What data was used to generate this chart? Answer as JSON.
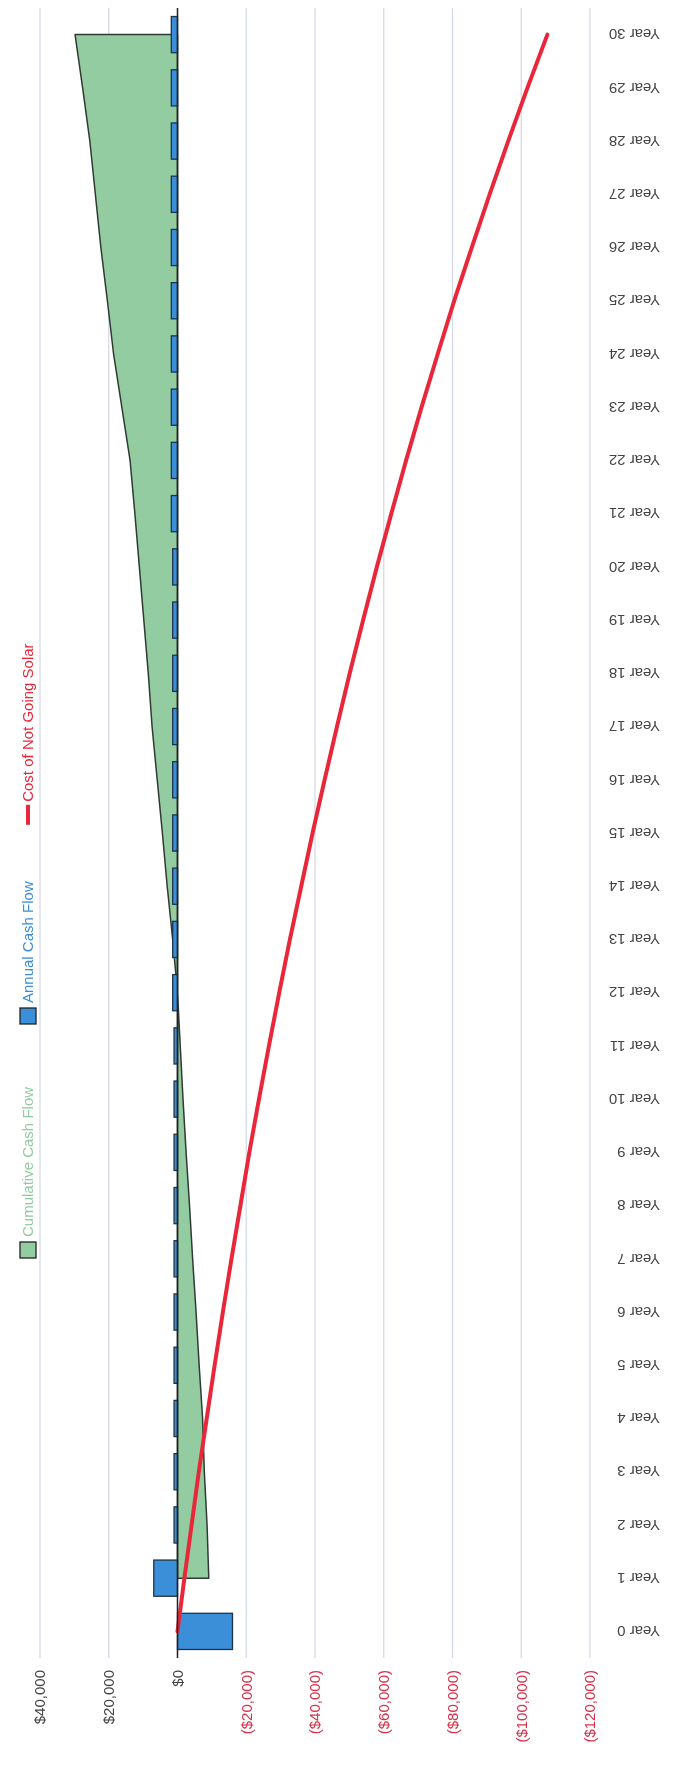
{
  "chart_data": {
    "type": "bar",
    "orientation": "horizontal",
    "categories": [
      "Year 30",
      "Year 29",
      "Year 28",
      "Year 27",
      "Year 26",
      "Year 25",
      "Year 24",
      "Year 23",
      "Year 22",
      "Year 21",
      "Year 20",
      "Year 19",
      "Year 18",
      "Year 17",
      "Year 16",
      "Year 15",
      "Year 14",
      "Year 13",
      "Year 12",
      "Year 11",
      "Year 10",
      "Year 9",
      "Year 8",
      "Year 7",
      "Year 6",
      "Year 5",
      "Year 4",
      "Year 3",
      "Year 2",
      "Year 1",
      "Year 0"
    ],
    "series": [
      {
        "name": "Cumulative Cash Flow",
        "type": "area",
        "color": "#93cca0",
        "values": [
          29800,
          27600,
          25500,
          23900,
          22300,
          20400,
          18600,
          16200,
          13800,
          12400,
          11100,
          9800,
          8500,
          7400,
          5900,
          4400,
          3000,
          1400,
          0,
          -800,
          -1600,
          -2500,
          -3500,
          -4400,
          -5400,
          -6300,
          -7300,
          -7800,
          -8600,
          -9100,
          null
        ]
      },
      {
        "name": "Annual Cash Flow",
        "color": "#3a8fd8",
        "values": [
          1800,
          1800,
          1800,
          1800,
          1800,
          1800,
          1800,
          1800,
          1800,
          1800,
          1400,
          1400,
          1400,
          1400,
          1400,
          1400,
          1400,
          1400,
          1400,
          1000,
          1000,
          1000,
          1000,
          1000,
          1000,
          1000,
          1000,
          1000,
          1000,
          6900,
          -16000
        ]
      },
      {
        "name": "Cost of Not Going Solar",
        "type": "line",
        "color": "#e8283a",
        "values": [
          -107600,
          -101800,
          -96200,
          -90800,
          -85600,
          -80500,
          -75700,
          -71000,
          -66500,
          -62200,
          -58000,
          -54000,
          -50100,
          -46400,
          -42800,
          -39300,
          -36000,
          -32700,
          -29600,
          -26600,
          -23700,
          -20900,
          -18300,
          -15700,
          -13200,
          -10800,
          -8500,
          -6200,
          -4100,
          -2000,
          0
        ]
      }
    ],
    "xlim": [
      40000,
      -120000
    ],
    "xticks": [
      {
        "value": 40000,
        "label": "$40,000"
      },
      {
        "value": 20000,
        "label": "$20,000"
      },
      {
        "value": 0,
        "label": "$0"
      },
      {
        "value": -20000,
        "label": "($20,000)"
      },
      {
        "value": -40000,
        "label": "($40,000)"
      },
      {
        "value": -60000,
        "label": "($60,000)"
      },
      {
        "value": -80000,
        "label": "($80,000)"
      },
      {
        "value": -100000,
        "label": "($100,000)"
      },
      {
        "value": -120000,
        "label": "($120,000)"
      }
    ],
    "grid": "x",
    "legend": "left"
  }
}
